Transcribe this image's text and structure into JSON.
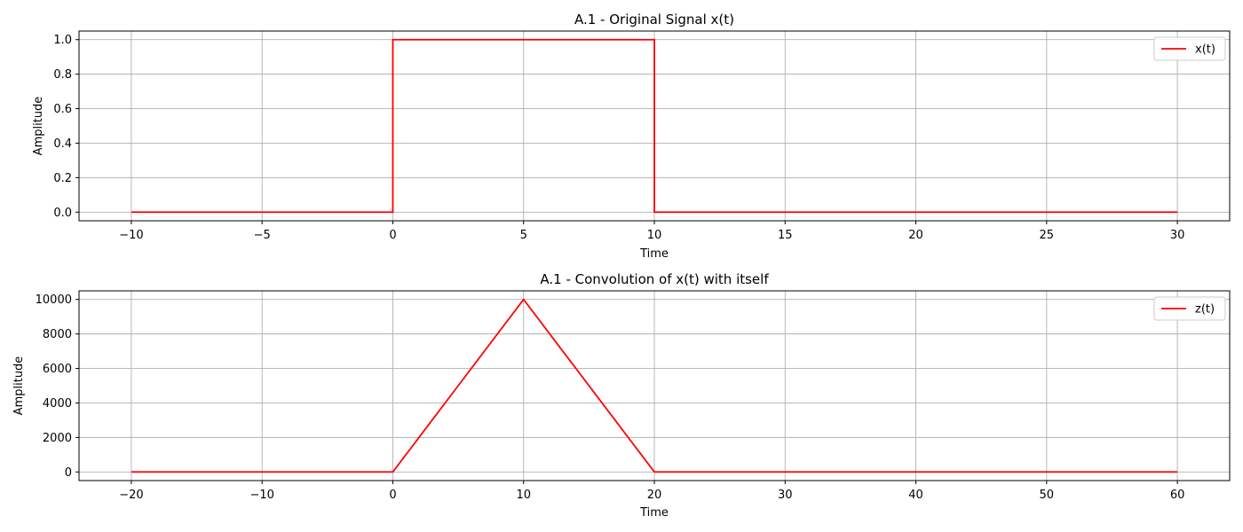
{
  "colors": {
    "series": "#ff0000",
    "grid": "#b0b0b0",
    "axes": "#000000",
    "legend_border": "#cccccc"
  },
  "chart_data": [
    {
      "type": "line",
      "title": "A.1 - Original Signal x(t)",
      "xlabel": "Time",
      "ylabel": "Amplitude",
      "xlim": [
        -12,
        32
      ],
      "ylim": [
        -0.05,
        1.05
      ],
      "xticks": [
        -10,
        -5,
        0,
        5,
        10,
        15,
        20,
        25,
        30
      ],
      "xtick_labels": [
        "−10",
        "−5",
        "0",
        "5",
        "10",
        "15",
        "20",
        "25",
        "30"
      ],
      "yticks": [
        0,
        0.2,
        0.4,
        0.6,
        0.8,
        1.0
      ],
      "ytick_labels": [
        "0.0",
        "0.2",
        "0.4",
        "0.6",
        "0.8",
        "1.0"
      ],
      "grid": true,
      "legend_position": "upper right",
      "series": [
        {
          "name": "x(t)",
          "color": "#ff0000",
          "x": [
            -10,
            0,
            0,
            10,
            10,
            30
          ],
          "y": [
            0,
            0,
            1,
            1,
            0,
            0
          ]
        }
      ]
    },
    {
      "type": "line",
      "title": "A.1 - Convolution of x(t) with itself",
      "xlabel": "Time",
      "ylabel": "Amplitude",
      "xlim": [
        -24,
        64
      ],
      "ylim": [
        -500,
        10500
      ],
      "xticks": [
        -20,
        -10,
        0,
        10,
        20,
        30,
        40,
        50,
        60
      ],
      "xtick_labels": [
        "−20",
        "−10",
        "0",
        "10",
        "20",
        "30",
        "40",
        "50",
        "60"
      ],
      "yticks": [
        0,
        2000,
        4000,
        6000,
        8000,
        10000
      ],
      "ytick_labels": [
        "0",
        "2000",
        "4000",
        "6000",
        "8000",
        "10000"
      ],
      "grid": true,
      "legend_position": "upper right",
      "series": [
        {
          "name": "z(t)",
          "color": "#ff0000",
          "x": [
            -20,
            0,
            10,
            20,
            60
          ],
          "y": [
            0,
            0,
            10000,
            0,
            0
          ]
        }
      ]
    }
  ]
}
